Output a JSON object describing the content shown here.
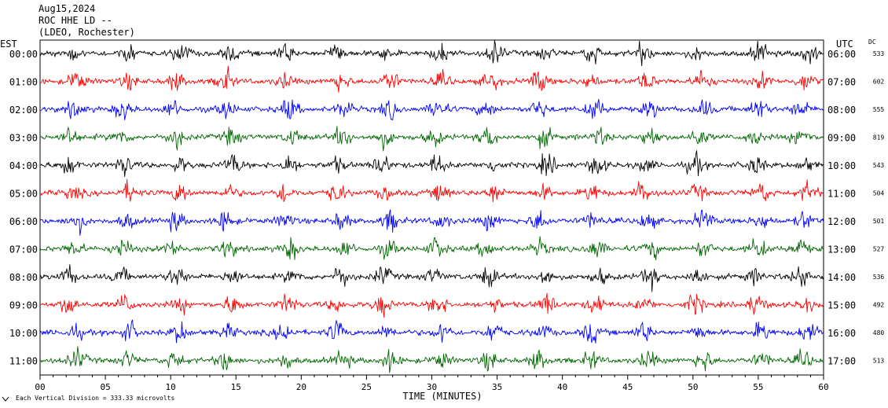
{
  "header": {
    "date": "Aug15,2024",
    "station": "ROC HHE LD --",
    "network": "(LDEO, Rochester)"
  },
  "labels": {
    "left_zone": "EST",
    "right_zone": "UTC",
    "dc": "DC",
    "x_axis": "TIME (MINUTES)",
    "scale_note": "Each Vertical Division = 333.33 microvolts"
  },
  "colors": {
    "trace_cycle": [
      "#000000",
      "#ff0000",
      "#0000ff",
      "#006600"
    ],
    "frame": "#000000",
    "background": "#ffffff"
  },
  "chart_data": {
    "type": "line",
    "xlabel": "TIME (MINUTES)",
    "xlim": [
      0,
      60
    ],
    "x_ticks": [
      "00",
      "05",
      "10",
      "15",
      "20",
      "25",
      "30",
      "35",
      "40",
      "45",
      "50",
      "55",
      "60"
    ],
    "rows": [
      {
        "est": "00:00",
        "utc": "06:00",
        "dc": "533"
      },
      {
        "est": "01:00",
        "utc": "07:00",
        "dc": "602"
      },
      {
        "est": "02:00",
        "utc": "08:00",
        "dc": "555"
      },
      {
        "est": "03:00",
        "utc": "09:00",
        "dc": "819"
      },
      {
        "est": "04:00",
        "utc": "10:00",
        "dc": "543"
      },
      {
        "est": "05:00",
        "utc": "11:00",
        "dc": "504"
      },
      {
        "est": "06:00",
        "utc": "12:00",
        "dc": "501"
      },
      {
        "est": "07:00",
        "utc": "13:00",
        "dc": "527"
      },
      {
        "est": "08:00",
        "utc": "14:00",
        "dc": "536"
      },
      {
        "est": "09:00",
        "utc": "15:00",
        "dc": "492"
      },
      {
        "est": "10:00",
        "utc": "16:00",
        "dc": "480"
      },
      {
        "est": "11:00",
        "utc": "17:00",
        "dc": "513"
      }
    ],
    "burst_minutes": [
      2.5,
      6.5,
      10.5,
      14.5,
      19,
      23,
      26.5,
      30.5,
      34.5,
      38.5,
      42.5,
      46.5,
      50.5,
      55,
      58.5
    ],
    "grid": false
  }
}
